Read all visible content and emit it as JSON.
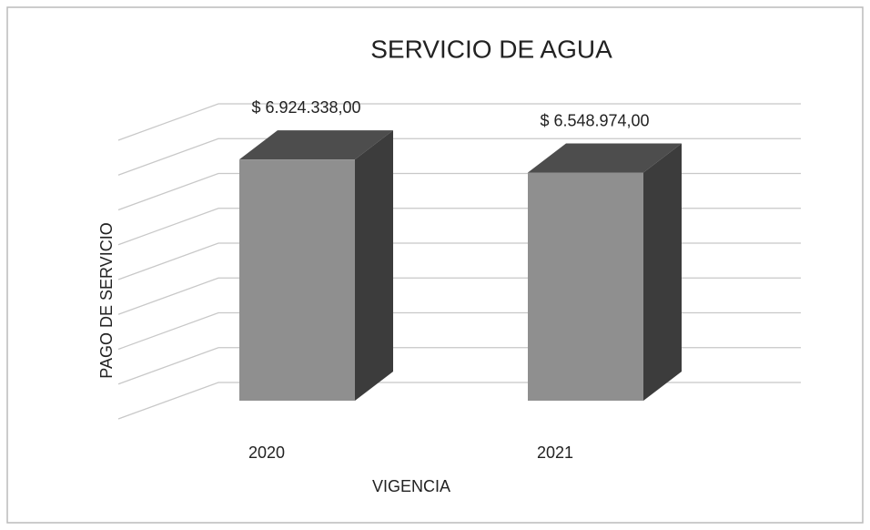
{
  "chart_data": {
    "type": "bar3d",
    "title": "SERVICIO DE AGUA",
    "categories": [
      "2020",
      "2021"
    ],
    "values": [
      6924338,
      6548974
    ],
    "value_labels": [
      "$ 6.924.338,00",
      "$ 6.548.974,00"
    ],
    "x_label": "VIGENCIA",
    "y_label": "PAGO DE SERVICIO",
    "color": "#8f8f8f",
    "ylim": [
      0,
      8000000
    ],
    "yticks": [
      0,
      1000000,
      2000000,
      3000000,
      4000000,
      5000000,
      6000000,
      7000000,
      8000000
    ],
    "grid": true
  }
}
